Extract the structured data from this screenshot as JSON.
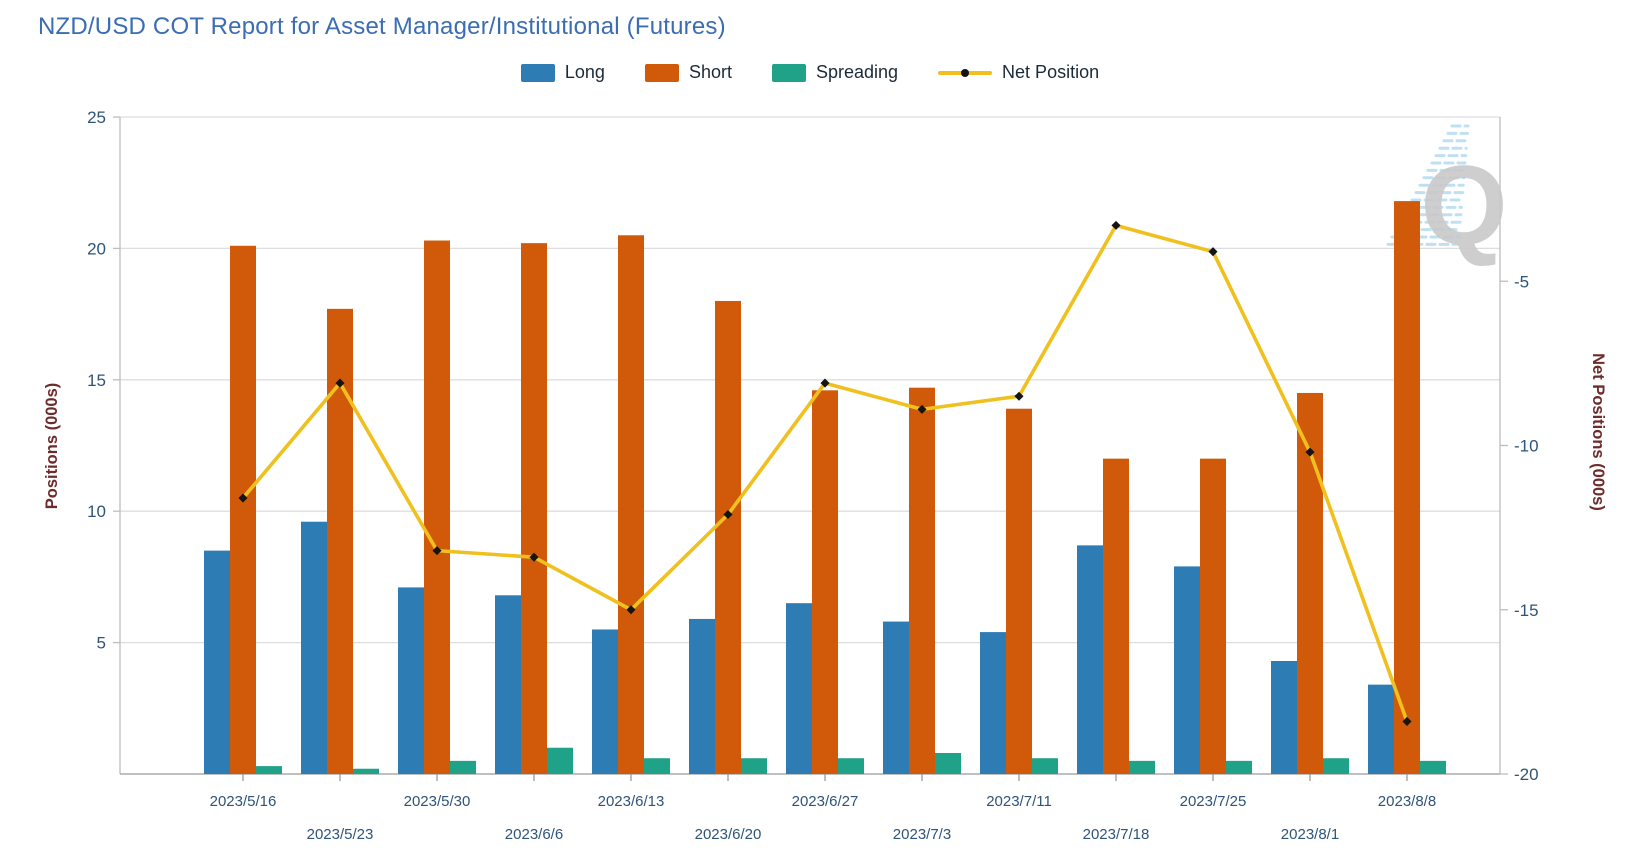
{
  "title": "NZD/USD COT Report for Asset Manager/Institutional (Futures)",
  "watermark": {
    "letter": "Q",
    "letter_color": "#C9C9C9",
    "dash_color": "#BFE0F2"
  },
  "colors": {
    "title": "#3A6DB3",
    "axis_title": "#6E2B2B",
    "tick_label": "#2E5479",
    "gridline": "#DEDEDE",
    "axis_line": "#BDBDBD"
  },
  "chart_data": {
    "type": "bar",
    "subtype": "grouped-bars-with-line",
    "title": "NZD/USD COT Report for Asset Manager/Institutional (Futures)",
    "categories": [
      "2023/5/16",
      "2023/5/23",
      "2023/5/30",
      "2023/6/6",
      "2023/6/13",
      "2023/6/20",
      "2023/6/27",
      "2023/7/3",
      "2023/7/11",
      "2023/7/18",
      "2023/7/25",
      "2023/8/1",
      "2023/8/8"
    ],
    "series": [
      {
        "name": "Long",
        "type": "bar",
        "axis": "left",
        "color": "#2E7CB4",
        "values": [
          8.5,
          9.6,
          7.1,
          6.8,
          5.5,
          5.9,
          6.5,
          5.8,
          5.4,
          8.7,
          7.9,
          4.3,
          3.4
        ]
      },
      {
        "name": "Short",
        "type": "bar",
        "axis": "left",
        "color": "#D0590A",
        "values": [
          20.1,
          17.7,
          20.3,
          20.2,
          20.5,
          18.0,
          14.6,
          14.7,
          13.9,
          12.0,
          12.0,
          14.5,
          21.8
        ]
      },
      {
        "name": "Spreading",
        "type": "bar",
        "axis": "left",
        "color": "#1FA287",
        "values": [
          0.3,
          0.2,
          0.5,
          1.0,
          0.6,
          0.6,
          0.6,
          0.8,
          0.6,
          0.5,
          0.5,
          0.6,
          0.5
        ]
      },
      {
        "name": "Net Position",
        "type": "line",
        "axis": "right",
        "color": "#F0C01E",
        "marker_color": "#151515",
        "values": [
          -11.6,
          -8.1,
          -13.2,
          -13.4,
          -15.0,
          -12.1,
          -8.1,
          -8.9,
          -8.5,
          -3.3,
          -4.1,
          -10.2,
          -18.4
        ]
      }
    ],
    "left_axis": {
      "label": "Positions (000s)",
      "min": 0,
      "max": 25,
      "ticks": [
        5,
        10,
        15,
        20,
        25
      ]
    },
    "right_axis": {
      "label": "Net Positions (000s)",
      "min": -20,
      "max": 0,
      "ticks": [
        -5,
        -10,
        -15,
        -20
      ]
    },
    "grid": true,
    "legend_position": "top",
    "x_labels_staggered": true
  }
}
